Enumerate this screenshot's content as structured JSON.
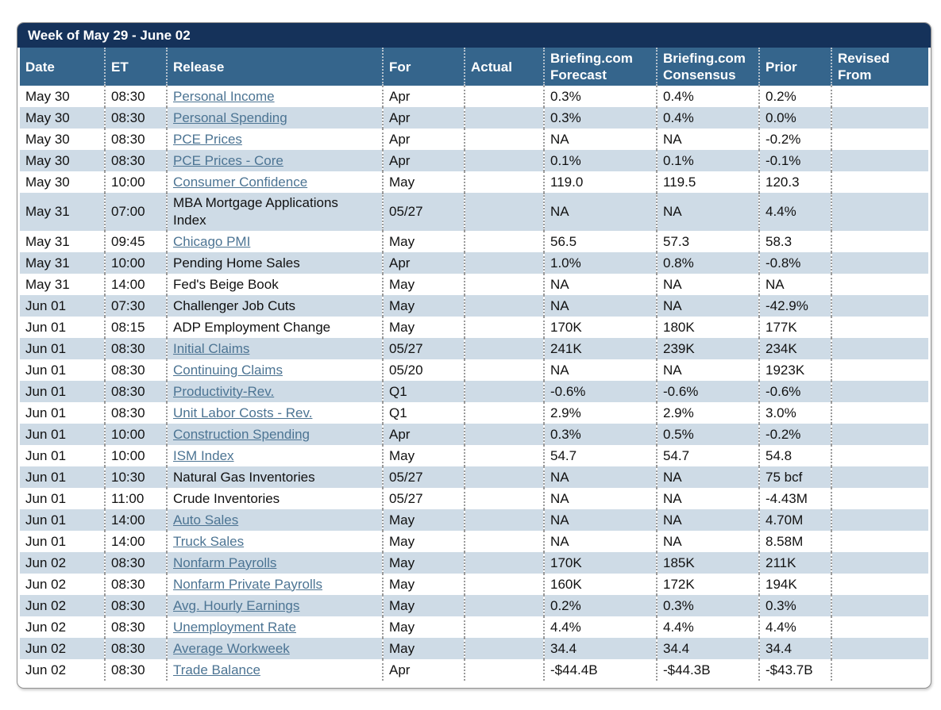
{
  "title": "Week of May 29 - June 02",
  "colors": {
    "title_bar": "#15325a",
    "header": "#35658c",
    "row": "#ffffff",
    "row_alt": "#cedbe6",
    "link": "#4c7493",
    "text": "#111111",
    "grid": "#9a9a9a",
    "border": "#8f8f8f"
  },
  "columns": [
    {
      "key": "date",
      "label": "Date"
    },
    {
      "key": "et",
      "label": "ET"
    },
    {
      "key": "release",
      "label": "Release"
    },
    {
      "key": "for",
      "label": "For"
    },
    {
      "key": "actual",
      "label": "Actual"
    },
    {
      "key": "forecast",
      "label": "Briefing.com Forecast"
    },
    {
      "key": "consensus",
      "label": "Briefing.com Consensus"
    },
    {
      "key": "prior",
      "label": "Prior"
    },
    {
      "key": "revised",
      "label": "Revised From"
    }
  ],
  "rows": [
    {
      "date": "May 30",
      "et": "08:30",
      "release": "Personal Income",
      "link": true,
      "for": "Apr",
      "actual": "",
      "forecast": "0.3%",
      "consensus": "0.4%",
      "prior": "0.2%",
      "revised": ""
    },
    {
      "date": "May 30",
      "et": "08:30",
      "release": "Personal Spending",
      "link": true,
      "for": "Apr",
      "actual": "",
      "forecast": "0.3%",
      "consensus": "0.4%",
      "prior": "0.0%",
      "revised": ""
    },
    {
      "date": "May 30",
      "et": "08:30",
      "release": "PCE Prices",
      "link": true,
      "for": "Apr",
      "actual": "",
      "forecast": "NA",
      "consensus": "NA",
      "prior": "-0.2%",
      "revised": ""
    },
    {
      "date": "May 30",
      "et": "08:30",
      "release": "PCE Prices - Core",
      "link": true,
      "for": "Apr",
      "actual": "",
      "forecast": "0.1%",
      "consensus": "0.1%",
      "prior": "-0.1%",
      "revised": ""
    },
    {
      "date": "May 30",
      "et": "10:00",
      "release": "Consumer Confidence",
      "link": true,
      "for": "May",
      "actual": "",
      "forecast": "119.0",
      "consensus": "119.5",
      "prior": "120.3",
      "revised": ""
    },
    {
      "date": "May 31",
      "et": "07:00",
      "release": "MBA Mortgage Applications Index",
      "link": false,
      "for": "05/27",
      "actual": "",
      "forecast": "NA",
      "consensus": "NA",
      "prior": "4.4%",
      "revised": ""
    },
    {
      "date": "May 31",
      "et": "09:45",
      "release": "Chicago PMI",
      "link": true,
      "for": "May",
      "actual": "",
      "forecast": "56.5",
      "consensus": "57.3",
      "prior": "58.3",
      "revised": ""
    },
    {
      "date": "May 31",
      "et": "10:00",
      "release": "Pending Home Sales",
      "link": false,
      "for": "Apr",
      "actual": "",
      "forecast": "1.0%",
      "consensus": "0.8%",
      "prior": "-0.8%",
      "revised": ""
    },
    {
      "date": "May 31",
      "et": "14:00",
      "release": "Fed's Beige Book",
      "link": false,
      "for": "May",
      "actual": "",
      "forecast": "NA",
      "consensus": "NA",
      "prior": "NA",
      "revised": ""
    },
    {
      "date": "Jun 01",
      "et": "07:30",
      "release": "Challenger Job Cuts",
      "link": false,
      "for": "May",
      "actual": "",
      "forecast": "NA",
      "consensus": "NA",
      "prior": "-42.9%",
      "revised": ""
    },
    {
      "date": "Jun 01",
      "et": "08:15",
      "release": "ADP Employment Change",
      "link": false,
      "for": "May",
      "actual": "",
      "forecast": "170K",
      "consensus": "180K",
      "prior": "177K",
      "revised": ""
    },
    {
      "date": "Jun 01",
      "et": "08:30",
      "release": "Initial Claims",
      "link": true,
      "for": "05/27",
      "actual": "",
      "forecast": "241K",
      "consensus": "239K",
      "prior": "234K",
      "revised": ""
    },
    {
      "date": "Jun 01",
      "et": "08:30",
      "release": "Continuing Claims",
      "link": true,
      "for": "05/20",
      "actual": "",
      "forecast": "NA",
      "consensus": "NA",
      "prior": "1923K",
      "revised": ""
    },
    {
      "date": "Jun 01",
      "et": "08:30",
      "release": "Productivity-Rev.",
      "link": true,
      "for": "Q1",
      "actual": "",
      "forecast": "-0.6%",
      "consensus": "-0.6%",
      "prior": "-0.6%",
      "revised": ""
    },
    {
      "date": "Jun 01",
      "et": "08:30",
      "release": "Unit Labor Costs - Rev.",
      "link": true,
      "for": "Q1",
      "actual": "",
      "forecast": "2.9%",
      "consensus": "2.9%",
      "prior": "3.0%",
      "revised": ""
    },
    {
      "date": "Jun 01",
      "et": "10:00",
      "release": "Construction Spending",
      "link": true,
      "for": "Apr",
      "actual": "",
      "forecast": "0.3%",
      "consensus": "0.5%",
      "prior": "-0.2%",
      "revised": ""
    },
    {
      "date": "Jun 01",
      "et": "10:00",
      "release": "ISM Index",
      "link": true,
      "for": "May",
      "actual": "",
      "forecast": "54.7",
      "consensus": "54.7",
      "prior": "54.8",
      "revised": ""
    },
    {
      "date": "Jun 01",
      "et": "10:30",
      "release": "Natural Gas Inventories",
      "link": false,
      "for": "05/27",
      "actual": "",
      "forecast": "NA",
      "consensus": "NA",
      "prior": "75 bcf",
      "revised": ""
    },
    {
      "date": "Jun 01",
      "et": "11:00",
      "release": "Crude Inventories",
      "link": false,
      "for": "05/27",
      "actual": "",
      "forecast": "NA",
      "consensus": "NA",
      "prior": "-4.43M",
      "revised": ""
    },
    {
      "date": "Jun 01",
      "et": "14:00",
      "release": "Auto Sales",
      "link": true,
      "for": "May",
      "actual": "",
      "forecast": "NA",
      "consensus": "NA",
      "prior": "4.70M",
      "revised": ""
    },
    {
      "date": "Jun 01",
      "et": "14:00",
      "release": "Truck Sales",
      "link": true,
      "for": "May",
      "actual": "",
      "forecast": "NA",
      "consensus": "NA",
      "prior": "8.58M",
      "revised": ""
    },
    {
      "date": "Jun 02",
      "et": "08:30",
      "release": "Nonfarm Payrolls",
      "link": true,
      "for": "May",
      "actual": "",
      "forecast": "170K",
      "consensus": "185K",
      "prior": "211K",
      "revised": ""
    },
    {
      "date": "Jun 02",
      "et": "08:30",
      "release": "Nonfarm Private Payrolls",
      "link": true,
      "for": "May",
      "actual": "",
      "forecast": "160K",
      "consensus": "172K",
      "prior": "194K",
      "revised": ""
    },
    {
      "date": "Jun 02",
      "et": "08:30",
      "release": "Avg. Hourly Earnings",
      "link": true,
      "for": "May",
      "actual": "",
      "forecast": "0.2%",
      "consensus": "0.3%",
      "prior": "0.3%",
      "revised": ""
    },
    {
      "date": "Jun 02",
      "et": "08:30",
      "release": "Unemployment Rate",
      "link": true,
      "for": "May",
      "actual": "",
      "forecast": "4.4%",
      "consensus": "4.4%",
      "prior": "4.4%",
      "revised": ""
    },
    {
      "date": "Jun 02",
      "et": "08:30",
      "release": "Average Workweek",
      "link": true,
      "for": "May",
      "actual": "",
      "forecast": "34.4",
      "consensus": "34.4",
      "prior": "34.4",
      "revised": ""
    },
    {
      "date": "Jun 02",
      "et": "08:30",
      "release": "Trade Balance",
      "link": true,
      "for": "Apr",
      "actual": "",
      "forecast": "-$44.4B",
      "consensus": "-$44.3B",
      "prior": "-$43.7B",
      "revised": ""
    }
  ]
}
